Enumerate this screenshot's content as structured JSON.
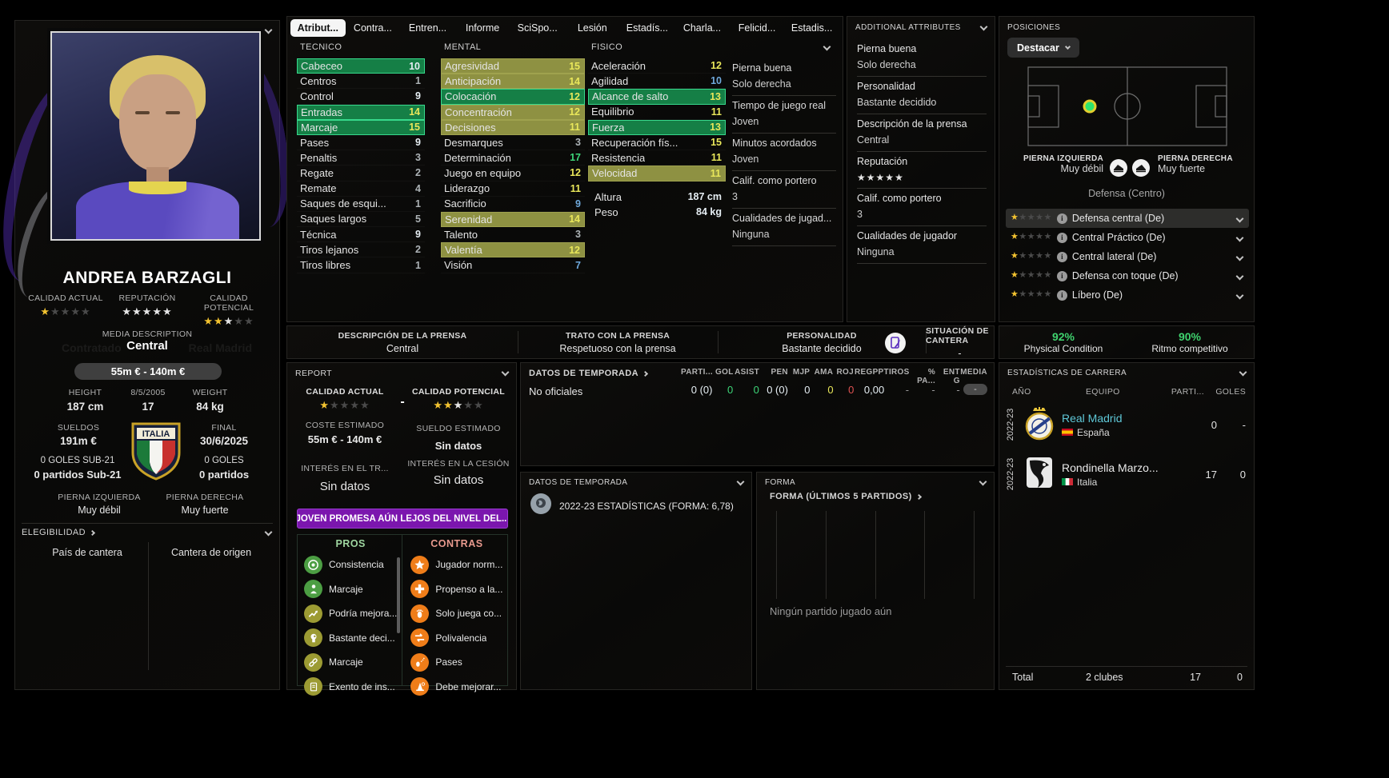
{
  "colors": {
    "green_highlight": "#157f46",
    "olive_highlight": "#8e9142",
    "banner_purple": "#7b16ae",
    "accent_green": "#3fd26e",
    "link_cyan": "#5fc8d8",
    "gold_star": "#f2c230",
    "orange_icon": "#ef7d19"
  },
  "player_panel": {
    "name": "ANDREA BARZAGLI",
    "watermark_left": "Contratado",
    "watermark_right": "Real Madrid",
    "ratings": [
      {
        "label": "CALIDAD ACTUAL",
        "stars": {
          "gold": 1,
          "light": 0,
          "dim": 4
        }
      },
      {
        "label": "REPUTACIÓN",
        "stars": {
          "gold": 0,
          "light": 5,
          "dim": 0
        }
      },
      {
        "label": "CALIDAD POTENCIAL",
        "stars": {
          "gold": 2,
          "light": 1,
          "dim": 2
        }
      }
    ],
    "media_description_label": "MEDIA DESCRIPTION",
    "media_description_value": "Central",
    "value_pill": "55m € - 140m €",
    "vitals": [
      {
        "label": "HEIGHT",
        "value": "187 cm"
      },
      {
        "label": "8/5/2005",
        "value": "17"
      },
      {
        "label": "WEIGHT",
        "value": "84 kg"
      }
    ],
    "wage_label": "SUELDOS",
    "wage_value": "191m €",
    "contract_label": "FINAL",
    "contract_value": "30/6/2025",
    "badge_text": "ITALIA",
    "u21_goals": "0 GOLES SUB-21",
    "u21_apps": "0 partidos Sub-21",
    "intl_goals": "0 GOLES",
    "intl_apps": "0 partidos",
    "left_foot_label": "PIERNA IZQUIERDA",
    "left_foot_value": "Muy débil",
    "right_foot_label": "PIERNA DERECHA",
    "right_foot_value": "Muy fuerte",
    "eligibility_label": "ELEGIBILIDAD",
    "eligibility_items": [
      "País de cantera",
      "Cantera de origen"
    ]
  },
  "tabs": {
    "items": [
      {
        "label": "Atribut...",
        "active": true
      },
      {
        "label": "Contra...",
        "active": false
      },
      {
        "label": "Entren...",
        "active": false
      },
      {
        "label": "Informe",
        "active": false
      },
      {
        "label": "SciSpo...",
        "active": false
      },
      {
        "label": "Lesión",
        "active": false
      },
      {
        "label": "Estadís...",
        "active": false
      },
      {
        "label": "Charla...",
        "active": false
      },
      {
        "label": "Felicid...",
        "active": false
      },
      {
        "label": "Estadis...",
        "active": false
      }
    ]
  },
  "attributes": {
    "columns": [
      {
        "key": "tecnico",
        "header": "TECNICO",
        "rows": [
          {
            "label": "Cabeceo",
            "value": "10",
            "color": "white",
            "hl": "green"
          },
          {
            "label": "Centros",
            "value": "1",
            "color": "gray",
            "hl": ""
          },
          {
            "label": "Control",
            "value": "9",
            "color": "white",
            "hl": ""
          },
          {
            "label": "Entradas",
            "value": "14",
            "color": "yellow",
            "hl": "green"
          },
          {
            "label": "Marcaje",
            "value": "15",
            "color": "yellow",
            "hl": "green"
          },
          {
            "label": "Pases",
            "value": "9",
            "color": "white",
            "hl": ""
          },
          {
            "label": "Penaltis",
            "value": "3",
            "color": "gray",
            "hl": ""
          },
          {
            "label": "Regate",
            "value": "2",
            "color": "gray",
            "hl": ""
          },
          {
            "label": "Remate",
            "value": "4",
            "color": "gray",
            "hl": ""
          },
          {
            "label": "Saques de esqui...",
            "value": "1",
            "color": "gray",
            "hl": ""
          },
          {
            "label": "Saques largos",
            "value": "5",
            "color": "gray",
            "hl": ""
          },
          {
            "label": "Técnica",
            "value": "9",
            "color": "white",
            "hl": ""
          },
          {
            "label": "Tiros lejanos",
            "value": "2",
            "color": "gray",
            "hl": ""
          },
          {
            "label": "Tiros libres",
            "value": "1",
            "color": "gray",
            "hl": ""
          }
        ]
      },
      {
        "key": "mental",
        "header": "MENTAL",
        "rows": [
          {
            "label": "Agresividad",
            "value": "15",
            "color": "yellow",
            "hl": "olive"
          },
          {
            "label": "Anticipación",
            "value": "14",
            "color": "yellow",
            "hl": "olive"
          },
          {
            "label": "Colocación",
            "value": "12",
            "color": "yellow",
            "hl": "green"
          },
          {
            "label": "Concentración",
            "value": "12",
            "color": "yellow",
            "hl": "olive"
          },
          {
            "label": "Decisiones",
            "value": "11",
            "color": "yellow",
            "hl": "olive"
          },
          {
            "label": "Desmarques",
            "value": "3",
            "color": "gray",
            "hl": ""
          },
          {
            "label": "Determinación",
            "value": "17",
            "color": "green",
            "hl": ""
          },
          {
            "label": "Juego en equipo",
            "value": "12",
            "color": "yellow",
            "hl": ""
          },
          {
            "label": "Liderazgo",
            "value": "11",
            "color": "yellow",
            "hl": ""
          },
          {
            "label": "Sacrificio",
            "value": "9",
            "color": "blue",
            "hl": ""
          },
          {
            "label": "Serenidad",
            "value": "14",
            "color": "yellow",
            "hl": "olive"
          },
          {
            "label": "Talento",
            "value": "3",
            "color": "gray",
            "hl": ""
          },
          {
            "label": "Valentía",
            "value": "12",
            "color": "yellow",
            "hl": "olive"
          },
          {
            "label": "Visión",
            "value": "7",
            "color": "blue",
            "hl": ""
          }
        ]
      },
      {
        "key": "fisico",
        "header": "FISICO",
        "rows": [
          {
            "label": "Aceleración",
            "value": "12",
            "color": "yellow",
            "hl": ""
          },
          {
            "label": "Agilidad",
            "value": "10",
            "color": "blue",
            "hl": ""
          },
          {
            "label": "Alcance de salto",
            "value": "13",
            "color": "yellow",
            "hl": "green"
          },
          {
            "label": "Equilibrio",
            "value": "11",
            "color": "yellow",
            "hl": ""
          },
          {
            "label": "Fuerza",
            "value": "13",
            "color": "yellow",
            "hl": "green"
          },
          {
            "label": "Recuperación fís...",
            "value": "15",
            "color": "yellow",
            "hl": ""
          },
          {
            "label": "Resistencia",
            "value": "11",
            "color": "yellow",
            "hl": ""
          },
          {
            "label": "Velocidad",
            "value": "11",
            "color": "yellow",
            "hl": "olive"
          }
        ],
        "extra": [
          {
            "label": "Altura",
            "value": "187 cm"
          },
          {
            "label": "Peso",
            "value": "84 kg"
          }
        ]
      }
    ],
    "side_groups": [
      {
        "label": "Pierna buena",
        "value": "Solo derecha"
      },
      {
        "label": "Tiempo de juego real",
        "value": "Joven"
      },
      {
        "label": "Minutos acordados",
        "value": "Joven"
      },
      {
        "label": "Calif. como portero",
        "value": "3"
      },
      {
        "label": "Cualidades de jugad...",
        "value": "Ninguna"
      }
    ]
  },
  "press_strip": {
    "sections": [
      {
        "label": "DESCRIPCIÓN DE LA PRENSA",
        "value": "Central",
        "icon": false
      },
      {
        "label": "TRATO CON LA PRENSA",
        "value": "Respetuoso con la prensa",
        "icon": false
      },
      {
        "label": "PERSONALIDAD",
        "value": "Bastante decidido",
        "icon": true
      },
      {
        "label": "SITUACIÓN DE CANTERA",
        "value": "-",
        "icon": false
      }
    ]
  },
  "additional": {
    "title": "ADDITIONAL ATTRIBUTES",
    "groups": [
      {
        "label": "Pierna buena",
        "value": "Solo derecha",
        "stars": null
      },
      {
        "label": "Personalidad",
        "value": "Bastante decidido",
        "stars": null
      },
      {
        "label": "Descripción de la prensa",
        "value": "Central",
        "stars": null
      },
      {
        "label": "Reputación",
        "value": "",
        "stars": {
          "gold": 0,
          "light": 5,
          "dim": 0
        }
      },
      {
        "label": "Calif. como portero",
        "value": "3",
        "stars": null
      },
      {
        "label": "Cualidades de jugador",
        "value": "Ninguna",
        "stars": null
      }
    ]
  },
  "positions": {
    "title": "POSICIONES",
    "button_label": "Destacar",
    "group_label": "Defensa (Centro)",
    "left_foot_label": "PIERNA IZQUIERDA",
    "left_foot_value": "Muy débil",
    "right_foot_label": "PIERNA DERECHA",
    "right_foot_value": "Muy fuerte",
    "rows": [
      {
        "label": "Defensa central (De)",
        "selected": true,
        "stars": {
          "gold": 1,
          "light": 0,
          "dim": 4
        }
      },
      {
        "label": "Central Práctico (De)",
        "selected": false,
        "stars": {
          "gold": 1,
          "light": 0,
          "dim": 4
        }
      },
      {
        "label": "Central lateral (De)",
        "selected": false,
        "stars": {
          "gold": 1,
          "light": 0,
          "dim": 4
        }
      },
      {
        "label": "Defensa con toque (De)",
        "selected": false,
        "stars": {
          "gold": 1,
          "light": 0,
          "dim": 4
        }
      },
      {
        "label": "Líbero (De)",
        "selected": false,
        "stars": {
          "gold": 1,
          "light": 0,
          "dim": 4
        }
      }
    ]
  },
  "condition": {
    "physical_pct": "92%",
    "physical_label": "Physical Condition",
    "match_pct": "90%",
    "match_label": "Ritmo competitivo"
  },
  "career": {
    "title": "ESTADÍSTICAS DE CARRERA",
    "headers": {
      "year": "AÑO",
      "team": "EQUIPO",
      "apps": "PARTI...",
      "goals": "GOLES"
    },
    "rows": [
      {
        "year": "2022-23",
        "team": "Real Madrid",
        "link": true,
        "country": "España",
        "flag": "es",
        "apps": "0",
        "goals": "-",
        "crest": "real-madrid"
      },
      {
        "year": "2022-23",
        "team": "Rondinella Marzo...",
        "link": false,
        "country": "Italia",
        "flag": "it",
        "apps": "17",
        "goals": "0",
        "crest": "rondinella"
      }
    ],
    "total_label": "Total",
    "total_clubs": "2 clubes",
    "total_apps": "17",
    "total_goals": "0"
  },
  "report": {
    "title": "REPORT",
    "current_label": "CALIDAD ACTUAL",
    "current_stars": {
      "gold": 1,
      "light": 0,
      "dim": 4
    },
    "dash": "-",
    "potential_label": "CALIDAD POTENCIAL",
    "potential_stars": {
      "gold": 2,
      "light": 1,
      "dim": 2
    },
    "cost_label": "COSTE ESTIMADO",
    "cost_value": "55m € - 140m €",
    "salary_label": "SUELDO ESTIMADO",
    "salary_value": "Sin datos",
    "transfer_label": "INTERÉS EN EL TR...",
    "transfer_value": "Sin datos",
    "loan_label": "INTERÉS EN LA CESIÓN",
    "loan_value": "Sin datos",
    "banner": "JOVEN PROMESA AÚN LEJOS DEL NIVEL DEL...",
    "pros_title": "PROS",
    "cons_title": "CONTRAS",
    "pros": [
      {
        "icon": "target-icon",
        "tone": "green",
        "label": "Consistencia"
      },
      {
        "icon": "person-icon",
        "tone": "green",
        "label": "Marcaje"
      },
      {
        "icon": "trend-up-icon",
        "tone": "olive",
        "label": "Podría mejora..."
      },
      {
        "icon": "head-icon",
        "tone": "olive",
        "label": "Bastante deci..."
      },
      {
        "icon": "link-icon",
        "tone": "olive",
        "label": "Marcaje"
      },
      {
        "icon": "document-icon",
        "tone": "olive",
        "label": "Exento de ins..."
      }
    ],
    "cons": [
      {
        "icon": "star-icon",
        "tone": "orange",
        "label": "Jugador norm..."
      },
      {
        "icon": "plus-icon",
        "tone": "orange",
        "label": "Propenso a la..."
      },
      {
        "icon": "foot-icon",
        "tone": "orange",
        "label": "Solo juega co..."
      },
      {
        "icon": "swap-icon",
        "tone": "orange",
        "label": "Polivalencia"
      },
      {
        "icon": "pass-icon",
        "tone": "orange",
        "label": "Pases"
      },
      {
        "icon": "cone-icon",
        "tone": "orange",
        "label": "Debe mejorar..."
      }
    ]
  },
  "season_stats": {
    "title": "DATOS DE TEMPORADA",
    "row_label": "No oficiales",
    "columns": [
      {
        "h": "PARTI...",
        "v": "0 (0)",
        "c": "white"
      },
      {
        "h": "GOL",
        "v": "0",
        "c": "green"
      },
      {
        "h": "ASIST",
        "v": "0",
        "c": "green"
      },
      {
        "h": "PEN",
        "v": "0 (0)",
        "c": "white"
      },
      {
        "h": "MJP",
        "v": "0",
        "c": "white"
      },
      {
        "h": "AMA",
        "v": "0",
        "c": "yellow"
      },
      {
        "h": "ROJ",
        "v": "0",
        "c": "red"
      },
      {
        "h": "REGPP",
        "v": "0,00",
        "c": "white"
      },
      {
        "h": "TIROS",
        "v": "-",
        "c": "dim"
      },
      {
        "h": "% PA...",
        "v": "-",
        "c": "dim"
      },
      {
        "h": "ENT G",
        "v": "-",
        "c": "dim"
      },
      {
        "h": "MEDIA",
        "v": "-",
        "c": "pill"
      }
    ]
  },
  "season_panel": {
    "title": "DATOS DE TEMPORADA",
    "entry": "2022-23 ESTADÍSTICAS (FORMA: 6,78)"
  },
  "form_panel": {
    "title": "FORMA",
    "sub": "FORMA (ÚLTIMOS 5 PARTIDOS)",
    "empty": "Ningún partido jugado aún"
  }
}
